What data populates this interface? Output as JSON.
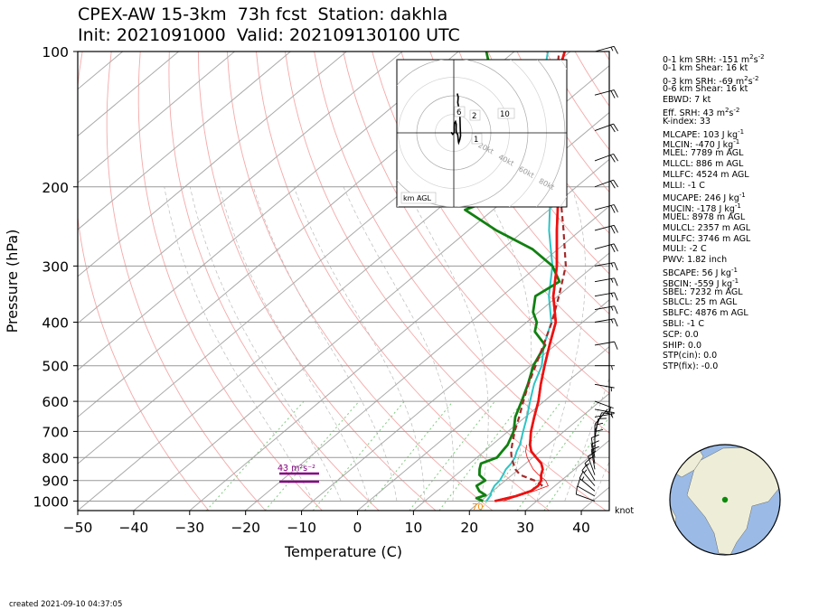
{
  "title_line1": "CPEX-AW 15-3km  73h fcst  Station: dakhla",
  "title_line2": "Init: 2021091000  Valid: 202109130100 UTC",
  "created": "created 2021-09-10 04:37:05",
  "wind_unit": "knot",
  "indices": [
    {
      "text": "0-1 km SRH: -151 m",
      "sup": "2",
      "tail": "s",
      "sup2": "-2"
    },
    {
      "text": "0-1 km Shear: 16 kt"
    },
    {
      "text": "0-3 km SRH: -69 m",
      "sup": "2",
      "tail": "s",
      "sup2": "-2"
    },
    {
      "text": "0-6 km Shear: 16 kt"
    },
    {
      "text": "EBWD: 7 kt"
    },
    {
      "text": "Eff. SRH: 43 m",
      "sup": "2",
      "tail": "s",
      "sup2": "-2"
    },
    {
      "text": "K-index: 33"
    },
    {
      "text": "MLCAPE: 103 J kg",
      "sup": "-1"
    },
    {
      "text": "MLCIN: -470 J kg",
      "sup": "-1"
    },
    {
      "text": "MLEL: 7789 m AGL"
    },
    {
      "text": "MLLCL: 886 m AGL"
    },
    {
      "text": "MLLFC: 4524 m AGL"
    },
    {
      "text": "MLLI: -1 C"
    },
    {
      "text": "MUCAPE: 246 J kg",
      "sup": "-1"
    },
    {
      "text": "MUCIN: -178 J kg",
      "sup": "-1"
    },
    {
      "text": "MUEL: 8978 m AGL"
    },
    {
      "text": "MULCL: 2357 m AGL"
    },
    {
      "text": "MULFC: 3746 m AGL"
    },
    {
      "text": "MULI: -2 C"
    },
    {
      "text": "PWV: 1.82 inch"
    },
    {
      "text": "SBCAPE: 56 J kg",
      "sup": "-1"
    },
    {
      "text": "SBCIN: -559 J kg",
      "sup": "-1"
    },
    {
      "text": "SBEL: 7232 m AGL"
    },
    {
      "text": "SBLCL: 25 m AGL"
    },
    {
      "text": "SBLFC: 4876 m AGL"
    },
    {
      "text": "SBLI: -1 C"
    },
    {
      "text": "SCP: 0.0"
    },
    {
      "text": "SHIP: 0.0"
    },
    {
      "text": "STP(cin): 0.0"
    },
    {
      "text": "STP(fix): -0.0"
    }
  ],
  "chart_data": {
    "type": "line",
    "subtype": "skew-T log-p",
    "xlabel": "Temperature (C)",
    "ylabel": "Pressure (hPa)",
    "xlim": [
      -50,
      45
    ],
    "ylim": [
      1050,
      100
    ],
    "x_ticks": [
      -50,
      -40,
      -30,
      -20,
      -10,
      0,
      10,
      20,
      30,
      40
    ],
    "y_ticks": [
      100,
      200,
      300,
      400,
      500,
      600,
      700,
      800,
      900,
      1000
    ],
    "y_scale": "log",
    "skew_deg_per_decade": 96,
    "annotation_eff_srh": "43 m²s⁻²",
    "surface_label": "70",
    "series": [
      {
        "key": "temperature",
        "color": "#ee1111",
        "points": [
          [
            1000,
            22.5
          ],
          [
            975,
            25.2
          ],
          [
            950,
            26.8
          ],
          [
            925,
            27.0
          ],
          [
            900,
            26.4
          ],
          [
            875,
            25.2
          ],
          [
            850,
            24.3
          ],
          [
            825,
            22.8
          ],
          [
            800,
            20.6
          ],
          [
            775,
            18.4
          ],
          [
            750,
            16.8
          ],
          [
            700,
            14.1
          ],
          [
            650,
            11.6
          ],
          [
            600,
            9.0
          ],
          [
            550,
            5.8
          ],
          [
            500,
            2.5
          ],
          [
            450,
            -1.0
          ],
          [
            400,
            -4.8
          ],
          [
            350,
            -10.8
          ],
          [
            300,
            -16.6
          ],
          [
            250,
            -24.2
          ],
          [
            200,
            -33.2
          ],
          [
            175,
            -38.8
          ],
          [
            150,
            -46.0
          ],
          [
            125,
            -54.0
          ],
          [
            100,
            -61.0
          ]
        ]
      },
      {
        "key": "virtual_temperature",
        "color": "#2ec4c4",
        "points": [
          [
            1000,
            21.0
          ],
          [
            975,
            20.6
          ],
          [
            950,
            19.8
          ],
          [
            925,
            19.2
          ],
          [
            900,
            19.0
          ],
          [
            875,
            18.4
          ],
          [
            850,
            17.7
          ],
          [
            825,
            17.4
          ],
          [
            800,
            16.8
          ],
          [
            775,
            15.8
          ],
          [
            750,
            15.0
          ],
          [
            700,
            12.7
          ],
          [
            650,
            10.3
          ],
          [
            600,
            7.5
          ],
          [
            550,
            4.6
          ],
          [
            500,
            2.0
          ],
          [
            450,
            -2.0
          ],
          [
            400,
            -5.6
          ],
          [
            350,
            -11.6
          ],
          [
            300,
            -17.4
          ],
          [
            250,
            -25.6
          ],
          [
            200,
            -34.6
          ],
          [
            175,
            -40.2
          ],
          [
            150,
            -47.4
          ],
          [
            125,
            -56.0
          ],
          [
            100,
            -64.0
          ]
        ]
      },
      {
        "key": "dewpoint",
        "color": "#108010",
        "points": [
          [
            1000,
            20.4
          ],
          [
            985,
            18.6
          ],
          [
            970,
            19.6
          ],
          [
            950,
            17.6
          ],
          [
            925,
            16.0
          ],
          [
            900,
            16.4
          ],
          [
            875,
            14.2
          ],
          [
            850,
            13.0
          ],
          [
            825,
            12.0
          ],
          [
            800,
            13.6
          ],
          [
            775,
            13.2
          ],
          [
            750,
            12.8
          ],
          [
            700,
            11.0
          ],
          [
            650,
            8.2
          ],
          [
            600,
            6.0
          ],
          [
            550,
            3.5
          ],
          [
            500,
            0.5
          ],
          [
            450,
            -1.8
          ],
          [
            420,
            -6.5
          ],
          [
            400,
            -8.2
          ],
          [
            380,
            -11.0
          ],
          [
            350,
            -14.0
          ],
          [
            325,
            -12.8
          ],
          [
            300,
            -17.4
          ],
          [
            275,
            -24.6
          ],
          [
            250,
            -35.0
          ],
          [
            225,
            -45.0
          ],
          [
            200,
            -39.0
          ],
          [
            175,
            -45.0
          ],
          [
            150,
            -55.0
          ],
          [
            125,
            -64.0
          ],
          [
            100,
            -75.0
          ]
        ]
      },
      {
        "key": "parcel",
        "color": "#a52a2a",
        "points": [
          [
            925,
            27.8
          ],
          [
            900,
            25.2
          ],
          [
            875,
            21.5
          ],
          [
            850,
            19.4
          ],
          [
            825,
            17.8
          ],
          [
            800,
            16.2
          ],
          [
            775,
            14.8
          ],
          [
            750,
            13.6
          ],
          [
            700,
            11.2
          ],
          [
            650,
            8.9
          ],
          [
            600,
            6.3
          ],
          [
            550,
            3.6
          ],
          [
            500,
            0.9
          ],
          [
            450,
            -2.1
          ],
          [
            400,
            -5.5
          ],
          [
            350,
            -9.8
          ],
          [
            300,
            -15.0
          ],
          [
            250,
            -23.0
          ],
          [
            200,
            -33.0
          ],
          [
            150,
            -44.0
          ],
          [
            125,
            -53.5
          ],
          [
            100,
            -62.0
          ]
        ]
      },
      {
        "key": "thin_parcel_trace",
        "color": "#ee1111",
        "points": [
          [
            1000,
            24.0
          ],
          [
            975,
            25.6
          ],
          [
            950,
            27.4
          ],
          [
            925,
            28.8
          ],
          [
            900,
            27.2
          ],
          [
            875,
            24.8
          ],
          [
            850,
            22.6
          ],
          [
            825,
            20.8
          ],
          [
            800,
            19.0
          ],
          [
            775,
            17.4
          ],
          [
            750,
            16.2
          ]
        ]
      }
    ],
    "wind_barbs": [
      {
        "p": 1000,
        "speed": 10,
        "dir": 290
      },
      {
        "p": 975,
        "speed": 10,
        "dir": 300
      },
      {
        "p": 950,
        "speed": 15,
        "dir": 310
      },
      {
        "p": 925,
        "speed": 15,
        "dir": 320
      },
      {
        "p": 900,
        "speed": 15,
        "dir": 330
      },
      {
        "p": 875,
        "speed": 15,
        "dir": 340
      },
      {
        "p": 850,
        "speed": 15,
        "dir": 350
      },
      {
        "p": 825,
        "speed": 15,
        "dir": 350
      },
      {
        "p": 800,
        "speed": 10,
        "dir": 350
      },
      {
        "p": 775,
        "speed": 10,
        "dir": 360
      },
      {
        "p": 750,
        "speed": 10,
        "dir": 360
      },
      {
        "p": 725,
        "speed": 10,
        "dir": 10
      },
      {
        "p": 700,
        "speed": 10,
        "dir": 20
      },
      {
        "p": 675,
        "speed": 5,
        "dir": 40
      },
      {
        "p": 650,
        "speed": 5,
        "dir": 80
      },
      {
        "p": 625,
        "speed": 5,
        "dir": 100
      },
      {
        "p": 600,
        "speed": 5,
        "dir": 110
      },
      {
        "p": 550,
        "speed": 5,
        "dir": 100
      },
      {
        "p": 500,
        "speed": 5,
        "dir": 90
      },
      {
        "p": 450,
        "speed": 10,
        "dir": 80
      },
      {
        "p": 400,
        "speed": 15,
        "dir": 80
      },
      {
        "p": 375,
        "speed": 15,
        "dir": 80
      },
      {
        "p": 350,
        "speed": 15,
        "dir": 80
      },
      {
        "p": 325,
        "speed": 15,
        "dir": 80
      },
      {
        "p": 300,
        "speed": 15,
        "dir": 80
      },
      {
        "p": 275,
        "speed": 20,
        "dir": 75
      },
      {
        "p": 250,
        "speed": 20,
        "dir": 75
      },
      {
        "p": 225,
        "speed": 20,
        "dir": 75
      },
      {
        "p": 200,
        "speed": 20,
        "dir": 70
      },
      {
        "p": 175,
        "speed": 20,
        "dir": 70
      },
      {
        "p": 150,
        "speed": 20,
        "dir": 70
      },
      {
        "p": 125,
        "speed": 20,
        "dir": 75
      },
      {
        "p": 100,
        "speed": 15,
        "dir": 75
      }
    ],
    "hodograph": {
      "ring_labels": [
        "20kt",
        "40kt",
        "60kt",
        "80kt"
      ],
      "height_labels": [
        "1",
        "2",
        "6",
        "10"
      ],
      "corner_label": "km AGL",
      "points": [
        [
          0.2,
          -3.0
        ],
        [
          -0.5,
          -1.2
        ],
        [
          0.2,
          0.6
        ],
        [
          1.8,
          0.4
        ],
        [
          3.3,
          0.8
        ],
        [
          3.9,
          1.9
        ],
        [
          3.0,
          2.7
        ],
        [
          1.2,
          2.6
        ],
        [
          0.1,
          2.9
        ],
        [
          -0.6,
          4.3
        ],
        [
          -2.0,
          4.8
        ],
        [
          -3.0,
          5.1
        ],
        [
          -3.4,
          5.4
        ],
        [
          -2.3,
          6.7
        ],
        [
          -1.0,
          7.5
        ],
        [
          2.0,
          7.1
        ],
        [
          5.5,
          6.8
        ],
        [
          8.5,
          5.6
        ],
        [
          10.5,
          4.4
        ],
        [
          12.3,
          4.9
        ],
        [
          13.6,
          3.8
        ]
      ]
    },
    "globe_marker": {
      "lat": 23.7,
      "lon": -15.9
    }
  }
}
